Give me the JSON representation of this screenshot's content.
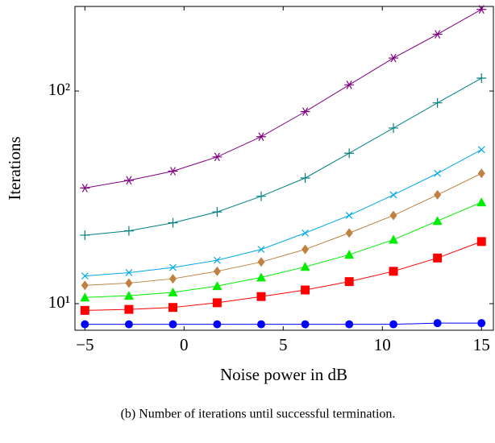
{
  "chart_data": {
    "type": "line",
    "xlabel": "Noise power in dB",
    "ylabel": "Iterations",
    "caption": "(b) Number of iterations until successful termination.",
    "x": [
      -5,
      -2.78,
      -0.56,
      1.67,
      3.89,
      6.11,
      8.33,
      10.56,
      12.78,
      15
    ],
    "series": [
      {
        "color": "#800080",
        "marker": "star",
        "values": [
          35,
          38,
          42,
          49,
          61,
          80,
          107,
          143,
          185,
          242
        ]
      },
      {
        "color": "#008080",
        "marker": "plus",
        "values": [
          21,
          22,
          24,
          27,
          32,
          39,
          51,
          67,
          88,
          115
        ]
      },
      {
        "color": "#00a8e8",
        "marker": "cross",
        "values": [
          13.5,
          14,
          14.8,
          16,
          18,
          21.5,
          26,
          32.5,
          41,
          53
        ]
      },
      {
        "color": "#bf8040",
        "marker": "diamond",
        "values": [
          12.2,
          12.5,
          13.1,
          14.2,
          15.7,
          18,
          21.5,
          26,
          32.5,
          41
        ]
      },
      {
        "color": "#00ee00",
        "marker": "triangle",
        "values": [
          10.7,
          10.9,
          11.3,
          12.1,
          13.3,
          14.9,
          17,
          20,
          24.5,
          30
        ]
      },
      {
        "color": "#ff0000",
        "marker": "square",
        "values": [
          9.3,
          9.4,
          9.6,
          10.1,
          10.8,
          11.6,
          12.7,
          14.2,
          16.4,
          19.6
        ]
      },
      {
        "color": "#0000ff",
        "marker": "circle",
        "values": [
          8,
          8,
          8,
          8,
          8,
          8,
          8,
          8,
          8.1,
          8.1
        ]
      }
    ],
    "xlim": [
      -5.5,
      15.6
    ],
    "xticks": [
      {
        "value": -5,
        "label": "−5"
      },
      0,
      5,
      10,
      15
    ],
    "ylim": [
      7.5,
      250
    ],
    "ylog": true,
    "yticks": [
      {
        "value": 10,
        "label": "10¹"
      },
      {
        "value": 100,
        "label": "10²"
      }
    ],
    "grid": false
  }
}
